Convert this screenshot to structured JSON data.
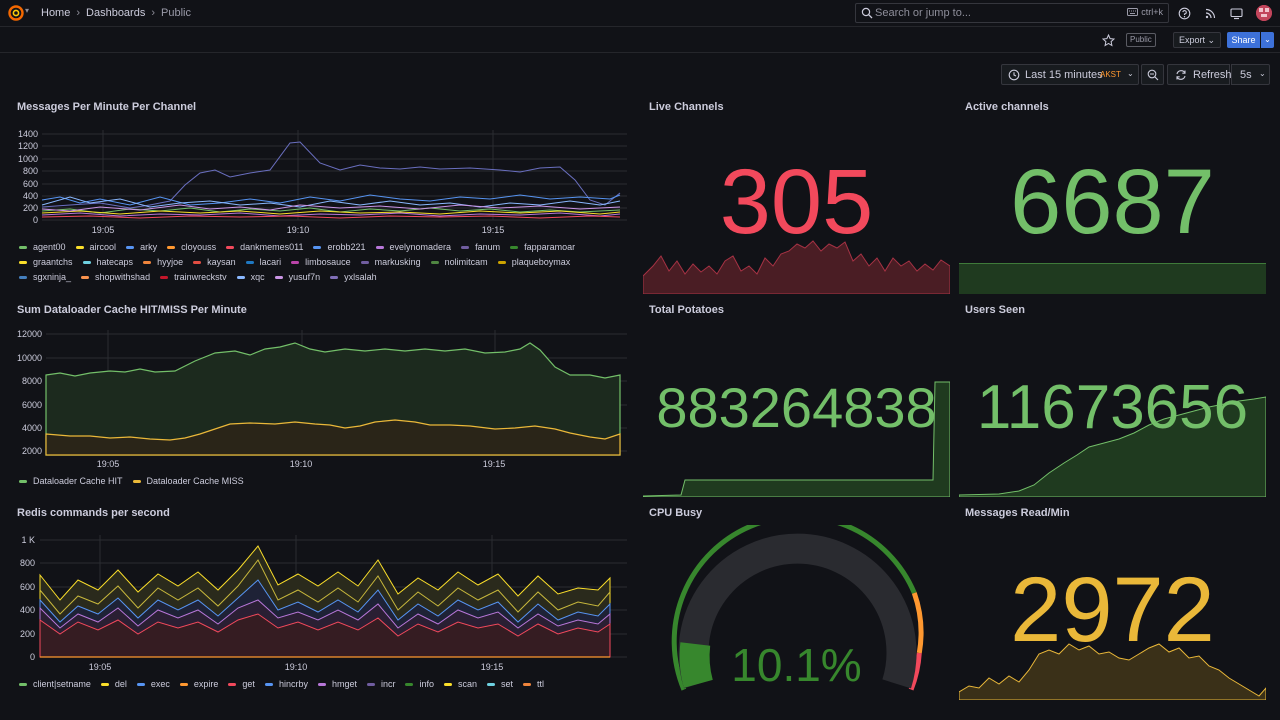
{
  "topbar": {
    "breadcrumbs": [
      "Home",
      "Dashboards",
      "Public"
    ],
    "search_placeholder": "Search or jump to...",
    "search_shortcut": "ctrl+k",
    "logo_icon": "grafana-logo-icon"
  },
  "toolbar": {
    "public_tag": "Public",
    "export_label": "Export",
    "share_label": "Share"
  },
  "timepicker": {
    "range_label": "Last 15 minutes",
    "timezone": "AKST",
    "refresh_label": "Refresh",
    "interval": "5s"
  },
  "colors": {
    "green": "#73bf69",
    "red": "#f2495c",
    "yellow": "#fade2a",
    "orange_yellow": "#eab839",
    "background": "#111217"
  },
  "panels": {
    "messages_per_minute": {
      "title": "Messages Per Minute Per Channel",
      "y_ticks": [
        "1400",
        "1200",
        "1000",
        "800",
        "600",
        "400",
        "200",
        "0"
      ],
      "x_ticks": [
        "19:05",
        "19:10",
        "19:15"
      ],
      "legend": [
        {
          "name": "agent00",
          "color": "#73bf69"
        },
        {
          "name": "aircool",
          "color": "#fade2a"
        },
        {
          "name": "arky",
          "color": "#5794f2"
        },
        {
          "name": "cloyouss",
          "color": "#ff9830"
        },
        {
          "name": "dankmemes011",
          "color": "#f2495c"
        },
        {
          "name": "erobb221",
          "color": "#5794f2"
        },
        {
          "name": "evelynomadera",
          "color": "#b877d9"
        },
        {
          "name": "fanum",
          "color": "#705da0"
        },
        {
          "name": "fapparamoar",
          "color": "#37872d"
        },
        {
          "name": "graantchs",
          "color": "#fade2a"
        },
        {
          "name": "hatecaps",
          "color": "#6ed0e0"
        },
        {
          "name": "hyyjoe",
          "color": "#ef843c"
        },
        {
          "name": "kaysan",
          "color": "#e24d42"
        },
        {
          "name": "lacari",
          "color": "#1f78c1"
        },
        {
          "name": "limbosauce",
          "color": "#ba43a9"
        },
        {
          "name": "markusking",
          "color": "#705da0"
        },
        {
          "name": "nolimitcam",
          "color": "#508642"
        },
        {
          "name": "plaqueboymax",
          "color": "#cca300"
        },
        {
          "name": "sgxninja_",
          "color": "#447ebc"
        },
        {
          "name": "shopwithshad",
          "color": "#f9934e"
        },
        {
          "name": "trainwreckstv",
          "color": "#c4162a"
        },
        {
          "name": "xqc",
          "color": "#8ab8ff"
        },
        {
          "name": "yusuf7n",
          "color": "#ca95e5"
        },
        {
          "name": "yxlsalah",
          "color": "#806eb7"
        }
      ]
    },
    "live_channels": {
      "title": "Live Channels",
      "value": "305",
      "color": "#f2495c"
    },
    "active_channels": {
      "title": "Active channels",
      "value": "6687",
      "color": "#73bf69"
    },
    "dataloader": {
      "title": "Sum Dataloader Cache HIT/MISS Per Minute",
      "y_ticks": [
        "12000",
        "10000",
        "8000",
        "6000",
        "4000",
        "2000"
      ],
      "x_ticks": [
        "19:05",
        "19:10",
        "19:15"
      ],
      "legend": [
        {
          "name": "Dataloader Cache HIT",
          "color": "#73bf69"
        },
        {
          "name": "Dataloader Cache MISS",
          "color": "#eab839"
        }
      ]
    },
    "total_potatoes": {
      "title": "Total Potatoes",
      "value": "883264838",
      "color": "#73bf69"
    },
    "users_seen": {
      "title": "Users Seen",
      "value": "11673656",
      "color": "#73bf69"
    },
    "redis": {
      "title": "Redis commands per second",
      "y_ticks": [
        "1 K",
        "800",
        "600",
        "400",
        "200",
        "0"
      ],
      "x_ticks": [
        "19:05",
        "19:10",
        "19:15"
      ],
      "legend": [
        {
          "name": "client|setname",
          "color": "#73bf69"
        },
        {
          "name": "del",
          "color": "#fade2a"
        },
        {
          "name": "exec",
          "color": "#5794f2"
        },
        {
          "name": "expire",
          "color": "#ff9830"
        },
        {
          "name": "get",
          "color": "#f2495c"
        },
        {
          "name": "hincrby",
          "color": "#5794f2"
        },
        {
          "name": "hmget",
          "color": "#b877d9"
        },
        {
          "name": "incr",
          "color": "#705da0"
        },
        {
          "name": "info",
          "color": "#37872d"
        },
        {
          "name": "scan",
          "color": "#fade2a"
        },
        {
          "name": "set",
          "color": "#6ed0e0"
        },
        {
          "name": "ttl",
          "color": "#ef843c"
        }
      ]
    },
    "cpu_busy": {
      "title": "CPU Busy",
      "value": "10.1%",
      "percent": 10.1,
      "color": "#37872d"
    },
    "messages_read": {
      "title": "Messages Read/Min",
      "value": "2972",
      "color": "#eab839"
    }
  }
}
